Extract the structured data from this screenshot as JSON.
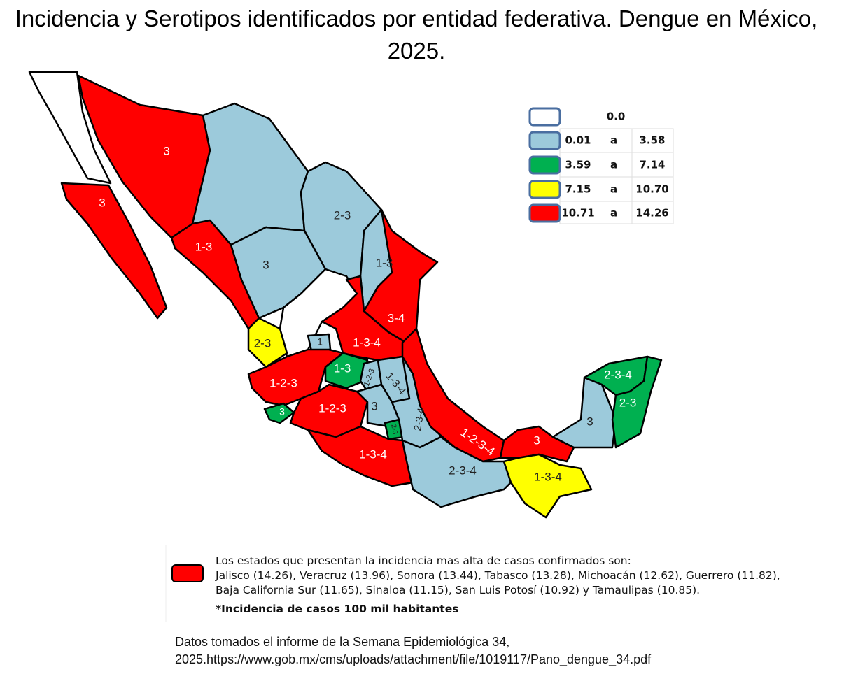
{
  "title": "Incidencia y Serotipos identificados por entidad federativa. Dengue en México, 2025.",
  "legend": {
    "rows": [
      [
        "0.0"
      ],
      [
        "0.01",
        "a",
        "3.58"
      ],
      [
        "3.59",
        "a",
        "7.14"
      ],
      [
        "7.15",
        "a",
        "10.70"
      ],
      [
        "10.71",
        "a",
        "14.26"
      ]
    ]
  },
  "states": [
    {
      "label": "3"
    },
    {
      "label": "3"
    },
    {
      "label": "1-3"
    },
    {
      "label": "3"
    },
    {
      "label": "2-3"
    },
    {
      "label": "1-3"
    },
    {
      "label": "3-4"
    },
    {
      "label": "2-3"
    },
    {
      "label": "1"
    },
    {
      "label": "1-3-4"
    },
    {
      "label": "1-3"
    },
    {
      "label": "1-2-3"
    },
    {
      "label": "1-2-3"
    },
    {
      "label": "1-3-4"
    },
    {
      "label": "3"
    },
    {
      "label": "1-2-3"
    },
    {
      "label": "3"
    },
    {
      "label": "2-3"
    },
    {
      "label": "2-3-4"
    },
    {
      "label": "1-2-3-4"
    },
    {
      "label": "1-3-4"
    },
    {
      "label": "2-3-4"
    },
    {
      "label": "3"
    },
    {
      "label": "1-3-4"
    },
    {
      "label": "3"
    },
    {
      "label": "2-3-4"
    },
    {
      "label": "2-3"
    }
  ],
  "note": {
    "lines": [
      "Los estados que presentan la incidencia mas alta de casos confirmados son:",
      "Jalisco (14.26), Veracruz (13.96), Sonora (13.44), Tabasco (13.28), Michoacán (12.62), Guerrero (11.82),",
      "Baja California Sur (11.65), Sinaloa (11.15), San Luis Potosí (10.92) y Tamaulipas (10.85)."
    ],
    "footnote": "*Incidencia de casos 100 mil habitantes"
  },
  "source": {
    "lines": [
      "Datos tomados el informe de la Semana Epidemiológica 34,",
      "2025.https://www.gob.mx/cms/uploads/attachment/file/1019117/Pano_dengue_34.pdf"
    ]
  }
}
